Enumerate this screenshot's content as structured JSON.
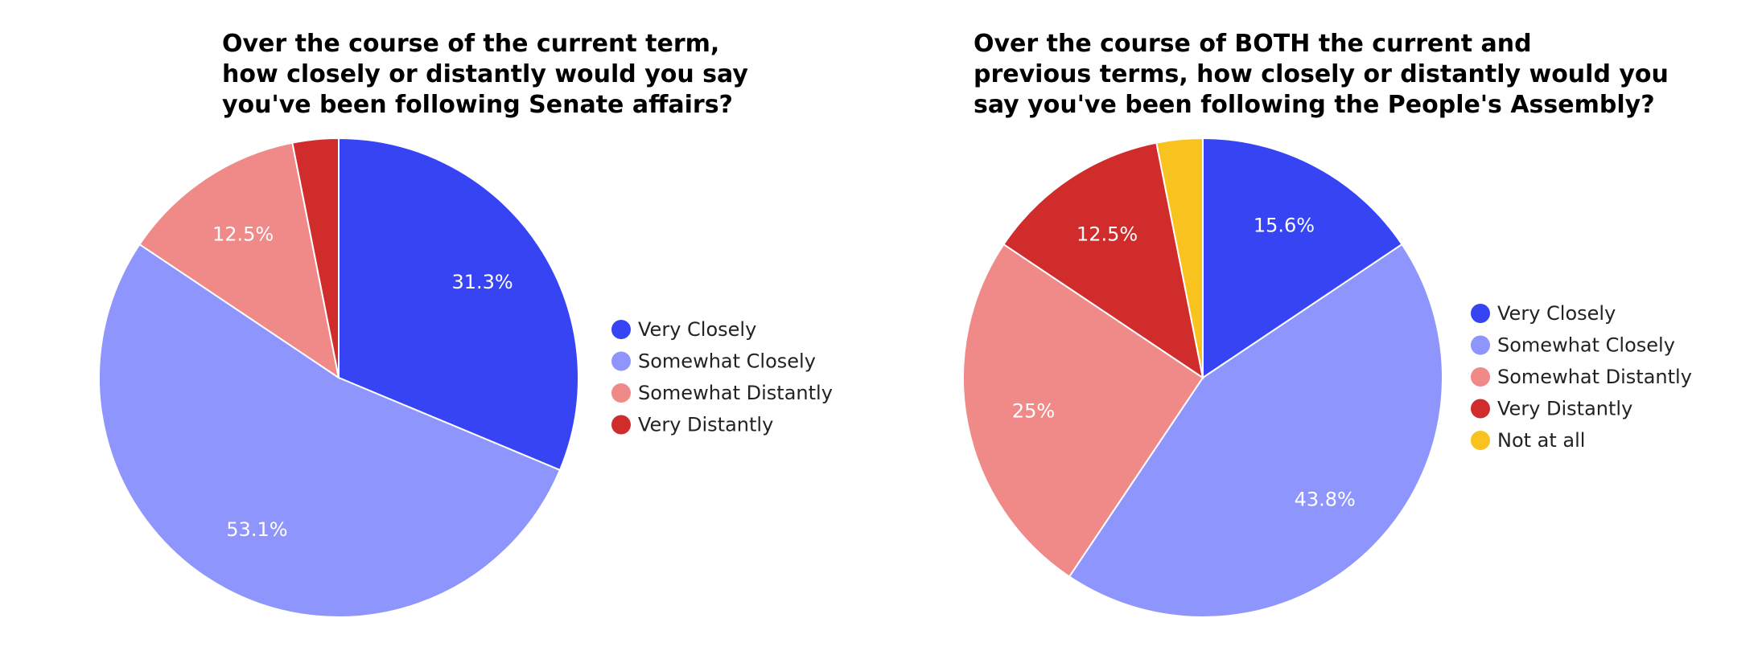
{
  "chart_data": [
    {
      "type": "pie",
      "title": "Over the course of the current term, how closely or distantly would you say you've been following Senate affairs?",
      "title_lines": [
        "Over the course of the current term,",
        "how closely or distantly would you say",
        "you've been following Senate affairs?"
      ],
      "legend_position": "right",
      "categories": [
        "Very Closely",
        "Somewhat Closely",
        "Somewhat Distantly",
        "Very Distantly"
      ],
      "values": [
        31.3,
        53.1,
        12.5,
        3.1
      ],
      "labels": [
        "31.3%",
        "53.1%",
        "12.5%",
        ""
      ],
      "colors": [
        "#3644f4",
        "#8e95fc",
        "#f08a88",
        "#d12c2c"
      ]
    },
    {
      "type": "pie",
      "title": "Over the course of BOTH the current and previous terms, how closely or distantly would you say you've been following the People's Assembly?",
      "title_lines": [
        "Over the course of BOTH the current and",
        "previous terms, how closely or distantly would you",
        "say you've been following the People's Assembly?"
      ],
      "legend_position": "right",
      "categories": [
        "Very Closely",
        "Somewhat Closely",
        "Somewhat Distantly",
        "Very Distantly",
        "Not at all"
      ],
      "values": [
        15.6,
        43.8,
        25,
        12.5,
        3.1
      ],
      "labels": [
        "15.6%",
        "43.8%",
        "25%",
        "12.5%",
        ""
      ],
      "colors": [
        "#3644f4",
        "#8e95fc",
        "#f08a88",
        "#d12c2c",
        "#f9c31f"
      ]
    }
  ]
}
